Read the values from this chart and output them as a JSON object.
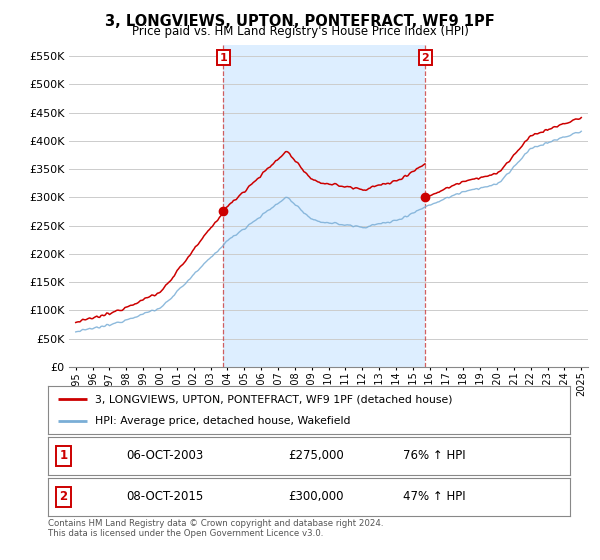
{
  "title": "3, LONGVIEWS, UPTON, PONTEFRACT, WF9 1PF",
  "subtitle": "Price paid vs. HM Land Registry's House Price Index (HPI)",
  "red_label": "3, LONGVIEWS, UPTON, PONTEFRACT, WF9 1PF (detached house)",
  "blue_label": "HPI: Average price, detached house, Wakefield",
  "annotation1_date": "06-OCT-2003",
  "annotation1_price": "£275,000",
  "annotation1_hpi": "76% ↑ HPI",
  "annotation2_date": "08-OCT-2015",
  "annotation2_price": "£300,000",
  "annotation2_hpi": "47% ↑ HPI",
  "footnote": "Contains HM Land Registry data © Crown copyright and database right 2024.\nThis data is licensed under the Open Government Licence v3.0.",
  "ylim_bottom": 0,
  "ylim_top": 570000,
  "yticks": [
    0,
    50000,
    100000,
    150000,
    200000,
    250000,
    300000,
    350000,
    400000,
    450000,
    500000,
    550000
  ],
  "ytick_labels": [
    "£0",
    "£50K",
    "£100K",
    "£150K",
    "£200K",
    "£250K",
    "£300K",
    "£350K",
    "£400K",
    "£450K",
    "£500K",
    "£550K"
  ],
  "red_color": "#cc0000",
  "blue_color": "#7aaed6",
  "shade_color": "#ddeeff",
  "point1_x": 2003.75,
  "point1_y": 275000,
  "point2_x": 2015.75,
  "point2_y": 300000,
  "vline1_x": 2003.75,
  "vline2_x": 2015.75,
  "background_color": "#ffffff",
  "grid_color": "#cccccc",
  "xmin": 1995,
  "xmax": 2025
}
